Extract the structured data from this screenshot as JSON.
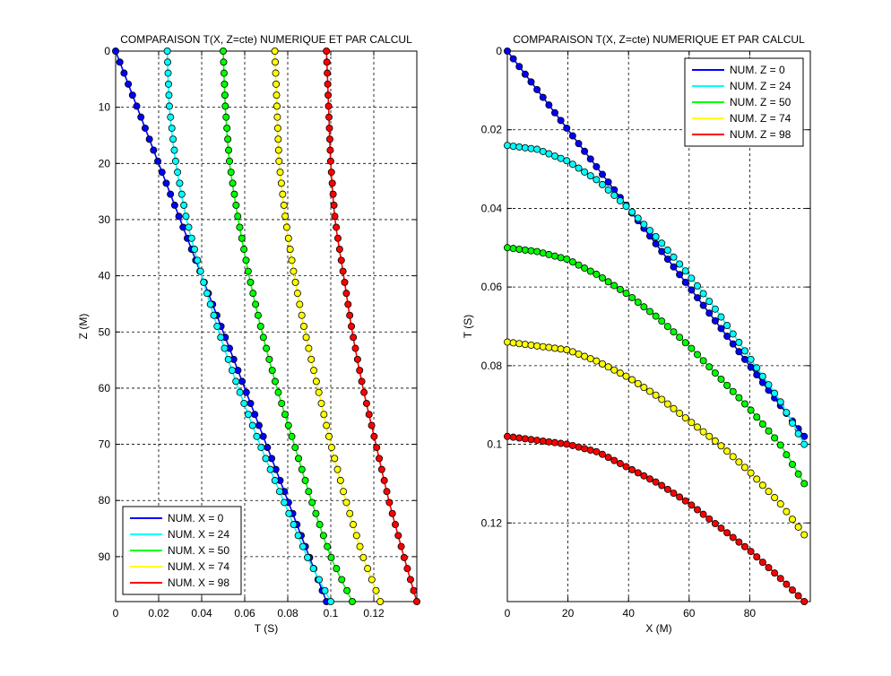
{
  "chart_data": [
    {
      "type": "line",
      "title": "COMPARAISON T(X, Z=cte) NUMERIQUE ET PAR CALCUL",
      "xlabel": "T (S)",
      "ylabel": "Z (M)",
      "xlim": [
        0,
        0.14
      ],
      "ylim": [
        0,
        98
      ],
      "y_reversed": true,
      "grid": true,
      "legend_position": "bottom-left",
      "x_ticks": [
        0,
        0.02,
        0.04,
        0.06,
        0.08,
        0.1,
        0.12
      ],
      "x_tick_labels": [
        "0",
        "0.02",
        "0.04",
        "0.06",
        "0.08",
        "0.1",
        "0.12"
      ],
      "y_ticks": [
        0,
        10,
        20,
        30,
        40,
        50,
        60,
        70,
        80,
        90
      ],
      "y_tick_labels": [
        "0",
        "10",
        "20",
        "30",
        "40",
        "50",
        "60",
        "70",
        "80",
        "90"
      ],
      "markers": "circle",
      "series": [
        {
          "name": "NUM. X = 0",
          "color": "#0000ff",
          "marker_color": "#0000ff",
          "z": [
            0,
            10,
            20,
            30,
            40,
            50,
            60,
            70,
            80,
            90,
            98
          ],
          "t": [
            0,
            0.01,
            0.02,
            0.03,
            0.04,
            0.05,
            0.06,
            0.07,
            0.08,
            0.09,
            0.098
          ]
        },
        {
          "name": "NUM. X = 24",
          "color": "#00ffff",
          "marker_color": "#00ffff",
          "z": [
            0,
            10,
            20,
            30,
            40,
            50,
            60,
            70,
            80,
            90,
            98
          ],
          "t": [
            0.024,
            0.025,
            0.028,
            0.033,
            0.04,
            0.048,
            0.057,
            0.067,
            0.078,
            0.089,
            0.1
          ]
        },
        {
          "name": "NUM. X = 50",
          "color": "#00ff00",
          "marker_color": "#00ff00",
          "z": [
            0,
            10,
            20,
            30,
            40,
            50,
            60,
            70,
            80,
            90,
            98
          ],
          "t": [
            0.05,
            0.051,
            0.053,
            0.057,
            0.062,
            0.068,
            0.075,
            0.083,
            0.091,
            0.1,
            0.11
          ]
        },
        {
          "name": "NUM. X = 74",
          "color": "#ffff00",
          "marker_color": "#ffff00",
          "z": [
            0,
            10,
            20,
            30,
            40,
            50,
            60,
            70,
            80,
            90,
            98
          ],
          "t": [
            0.074,
            0.075,
            0.076,
            0.079,
            0.083,
            0.088,
            0.094,
            0.1,
            0.107,
            0.115,
            0.123
          ]
        },
        {
          "name": "NUM. X = 98",
          "color": "#ff0000",
          "marker_color": "#ff0000",
          "z": [
            0,
            10,
            20,
            30,
            40,
            50,
            60,
            70,
            80,
            90,
            98
          ],
          "t": [
            0.098,
            0.099,
            0.1,
            0.102,
            0.106,
            0.11,
            0.115,
            0.121,
            0.127,
            0.134,
            0.14
          ]
        }
      ]
    },
    {
      "type": "line",
      "title": "COMPARAISON T(X, Z=cte) NUMERIQUE ET PAR CALCUL",
      "xlabel": "X (M)",
      "ylabel": "T (S)",
      "xlim": [
        0,
        100
      ],
      "ylim": [
        0,
        0.14
      ],
      "y_reversed": true,
      "grid": true,
      "legend_position": "top-right",
      "x_ticks": [
        0,
        20,
        40,
        60,
        80
      ],
      "x_tick_labels": [
        "0",
        "20",
        "40",
        "60",
        "80"
      ],
      "y_ticks": [
        0,
        0.02,
        0.04,
        0.06,
        0.08,
        0.1,
        0.12
      ],
      "y_tick_labels": [
        "0",
        "0.02",
        "0.04",
        "0.06",
        "0.08",
        "0.1",
        "0.12"
      ],
      "markers": "circle",
      "series": [
        {
          "name": "NUM. Z = 0",
          "color": "#0000ff",
          "marker_color": "#0000ff",
          "x": [
            0,
            10,
            20,
            30,
            40,
            50,
            60,
            70,
            80,
            90,
            98
          ],
          "t": [
            0,
            0.01,
            0.02,
            0.03,
            0.04,
            0.05,
            0.06,
            0.07,
            0.08,
            0.09,
            0.098
          ]
        },
        {
          "name": "NUM. Z = 24",
          "color": "#00ffff",
          "marker_color": "#00ffff",
          "x": [
            0,
            10,
            20,
            30,
            40,
            50,
            60,
            70,
            80,
            90,
            98
          ],
          "t": [
            0.024,
            0.025,
            0.028,
            0.033,
            0.04,
            0.048,
            0.057,
            0.067,
            0.078,
            0.089,
            0.1
          ]
        },
        {
          "name": "NUM. Z = 50",
          "color": "#00ff00",
          "marker_color": "#00ff00",
          "x": [
            0,
            10,
            20,
            30,
            40,
            50,
            60,
            70,
            80,
            90,
            98
          ],
          "t": [
            0.05,
            0.051,
            0.053,
            0.057,
            0.062,
            0.068,
            0.075,
            0.083,
            0.091,
            0.1,
            0.11
          ]
        },
        {
          "name": "NUM. Z = 74",
          "color": "#ffff00",
          "marker_color": "#ffff00",
          "x": [
            0,
            10,
            20,
            30,
            40,
            50,
            60,
            70,
            80,
            90,
            98
          ],
          "t": [
            0.074,
            0.075,
            0.076,
            0.079,
            0.083,
            0.088,
            0.094,
            0.1,
            0.107,
            0.115,
            0.123
          ]
        },
        {
          "name": "NUM. Z = 98",
          "color": "#ff0000",
          "marker_color": "#ff0000",
          "x": [
            0,
            10,
            20,
            30,
            40,
            50,
            60,
            70,
            80,
            90,
            98
          ],
          "t": [
            0.098,
            0.099,
            0.1,
            0.102,
            0.106,
            0.11,
            0.115,
            0.121,
            0.127,
            0.134,
            0.14
          ]
        }
      ]
    }
  ]
}
